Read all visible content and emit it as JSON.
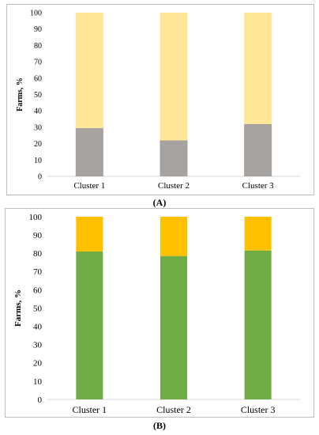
{
  "figure": {
    "caption_a": "(A)",
    "caption_b": "(B)"
  },
  "chart_data": [
    {
      "type": "bar",
      "stacked": true,
      "panel": "A",
      "categories": [
        "Cluster 1",
        "Cluster 2",
        "Cluster 3"
      ],
      "series": [
        {
          "values": [
            29.5,
            22,
            32
          ],
          "color": "#a6a2a0"
        },
        {
          "values": [
            70.5,
            78,
            68
          ],
          "color": "#ffe699"
        }
      ],
      "title": "",
      "xlabel": "",
      "ylabel": "Farms, %",
      "ylim": [
        0,
        100
      ],
      "yticks": [
        0,
        10,
        20,
        30,
        40,
        50,
        60,
        70,
        80,
        90,
        100
      ],
      "grid": false,
      "legend": "none"
    },
    {
      "type": "bar",
      "stacked": true,
      "panel": "B",
      "categories": [
        "Cluster 1",
        "Cluster 2",
        "Cluster 3"
      ],
      "series": [
        {
          "values": [
            81,
            78.5,
            81.5
          ],
          "color": "#70ad47"
        },
        {
          "values": [
            19,
            21.5,
            18.5
          ],
          "color": "#ffc000"
        }
      ],
      "title": "",
      "xlabel": "",
      "ylabel": "Farms, %",
      "ylim": [
        0,
        100
      ],
      "yticks": [
        0,
        10,
        20,
        30,
        40,
        50,
        60,
        70,
        80,
        90,
        100
      ],
      "grid": false,
      "legend": "none"
    }
  ]
}
